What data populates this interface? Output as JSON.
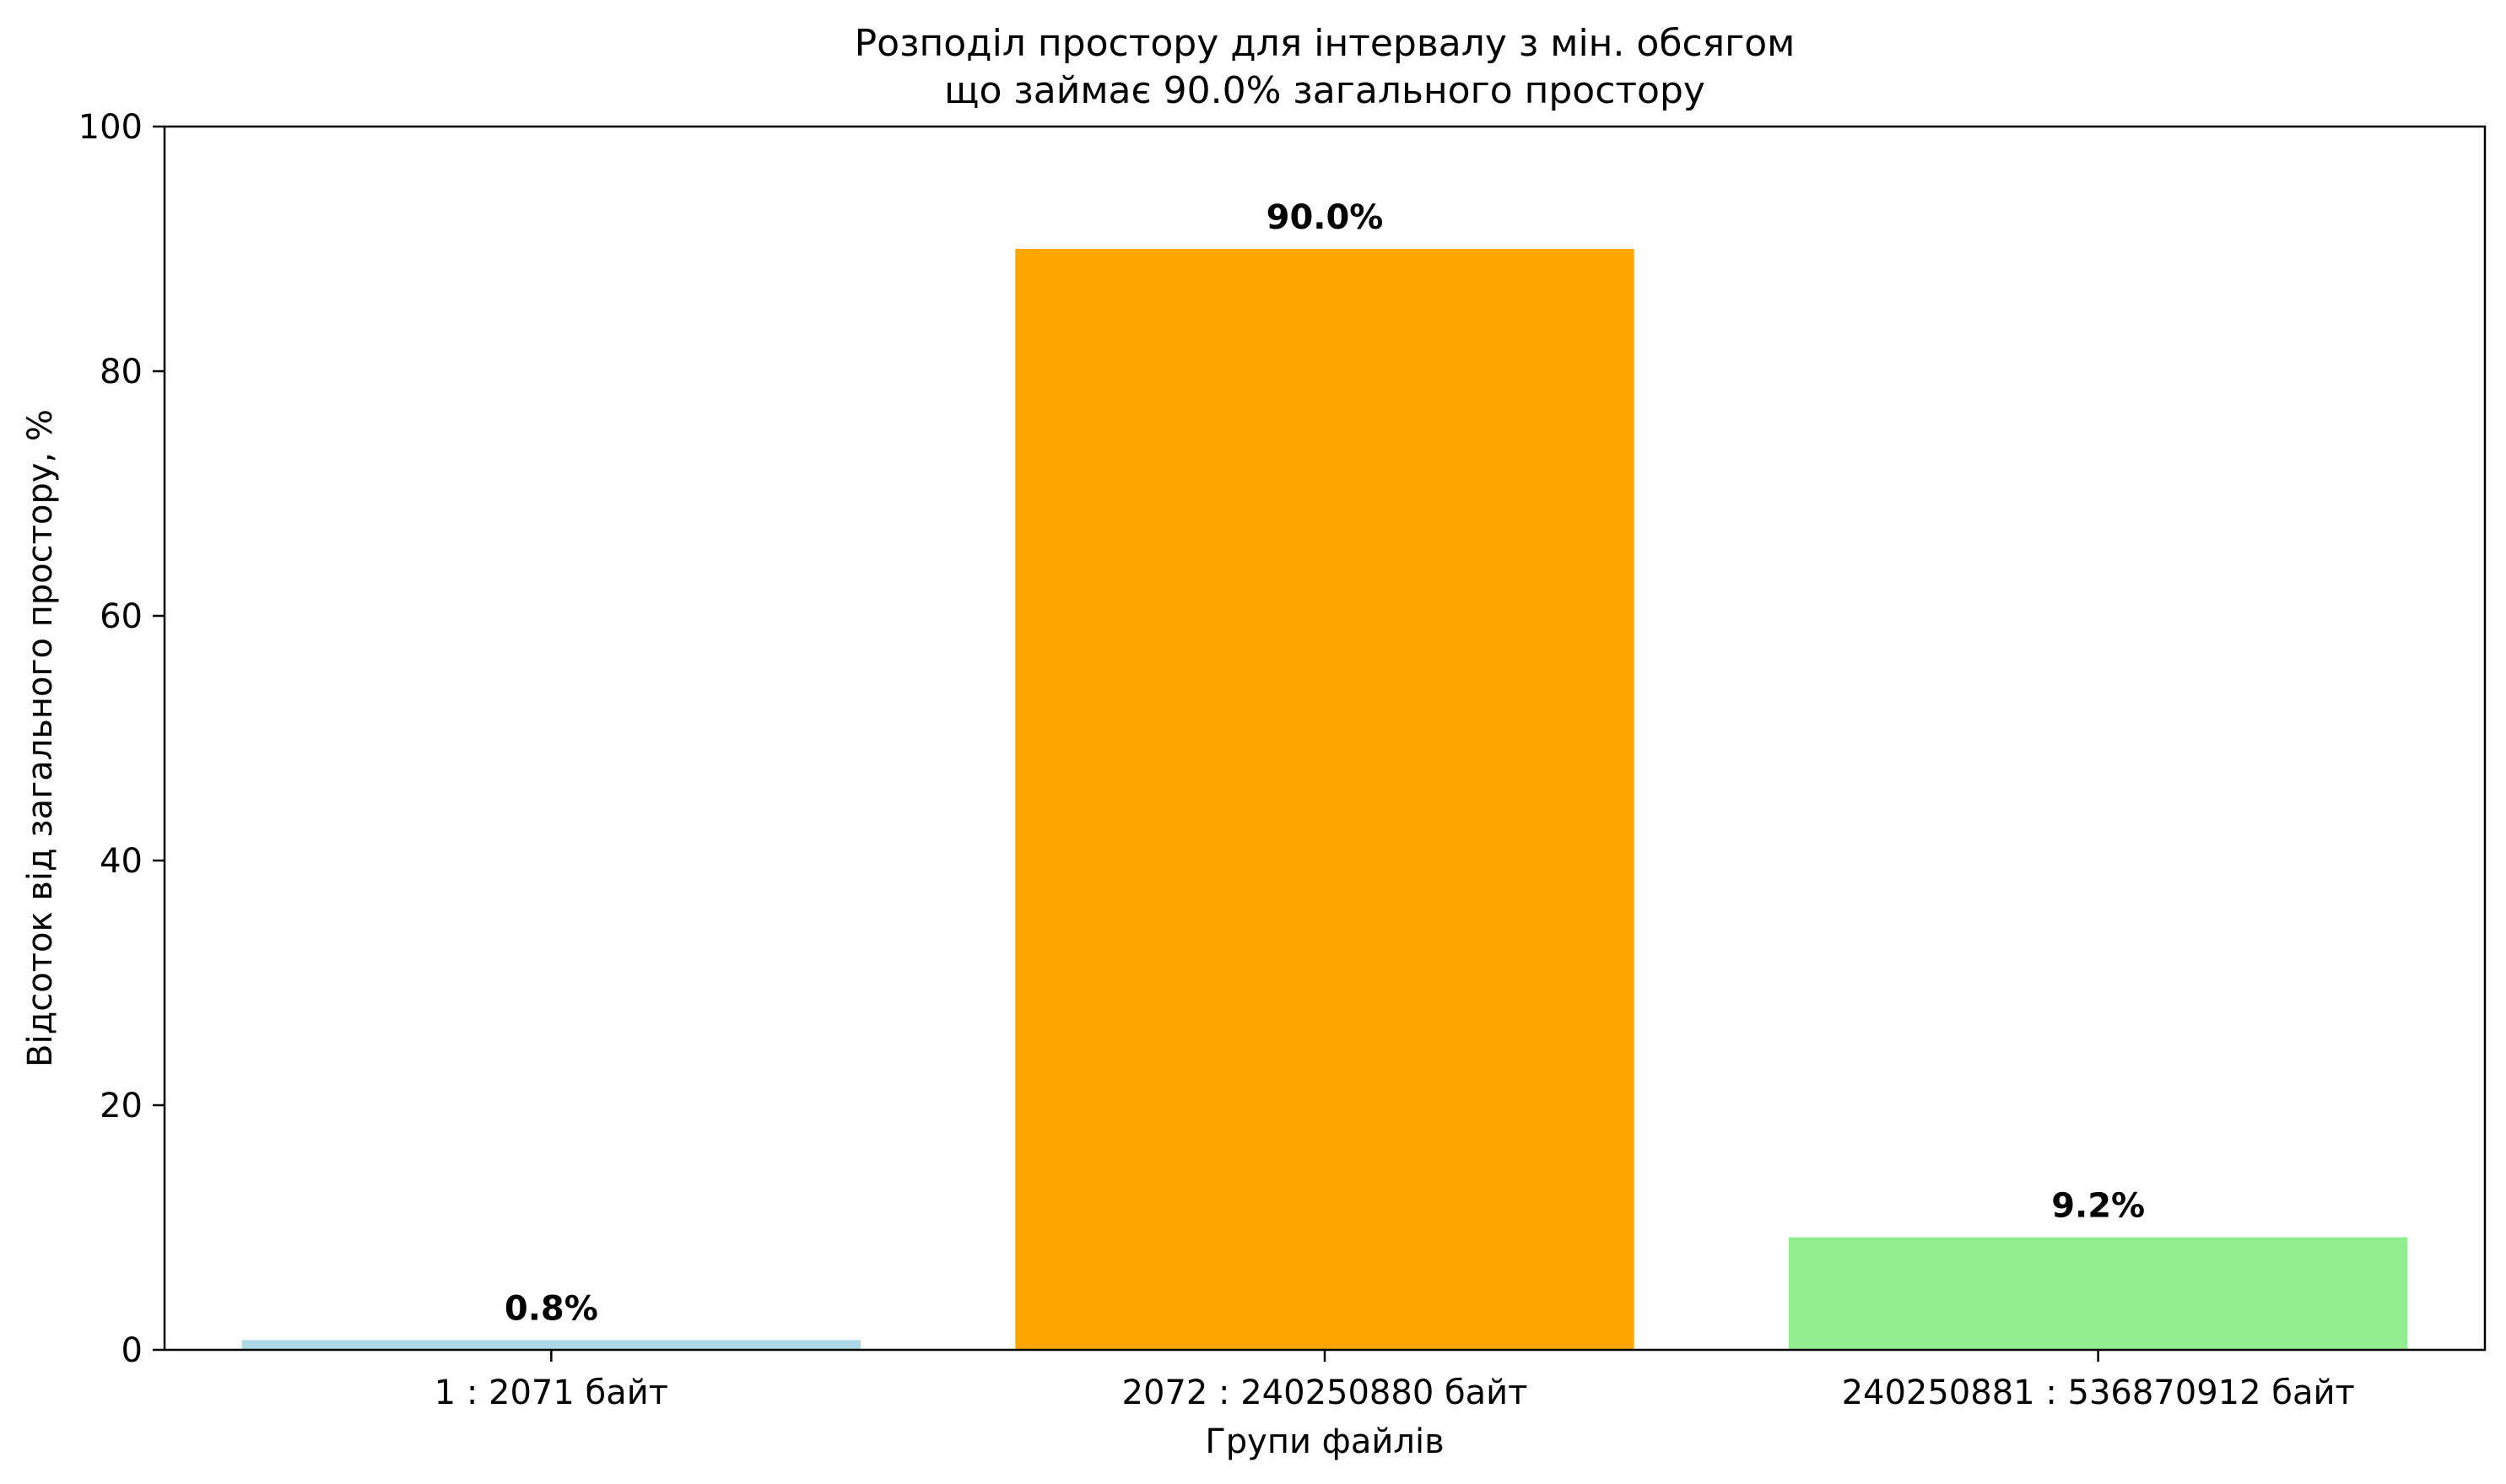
{
  "chart_data": {
    "type": "bar",
    "title": [
      "Розподіл простору для інтервалу з мін. обсягом",
      "що займає 90.0% загального простору"
    ],
    "xlabel": "Групи файлів",
    "ylabel": "Відсоток від загального простору, %",
    "categories": [
      "1 : 2071 байт",
      "2072 : 240250880 байт",
      "240250881 : 536870912 байт"
    ],
    "values": [
      0.8,
      90.0,
      9.2
    ],
    "value_labels": [
      "0.8%",
      "90.0%",
      "9.2%"
    ],
    "colors": [
      "#add8e6",
      "#ffa500",
      "#90ee90"
    ],
    "ylim": [
      0,
      100
    ],
    "yticks": [
      0,
      20,
      40,
      60,
      80,
      100
    ],
    "grid": false,
    "legend": false
  }
}
